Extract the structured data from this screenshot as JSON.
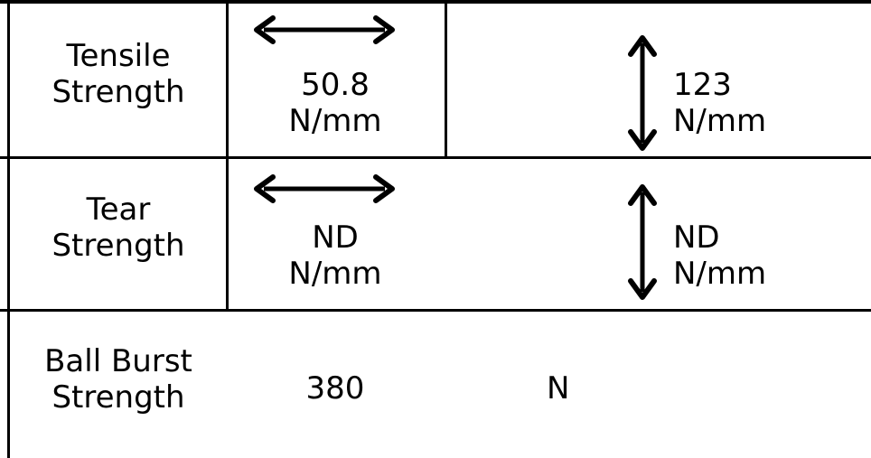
{
  "table": {
    "rows": [
      {
        "property": [
          "Tensile",
          "Strength"
        ],
        "direction_1": {
          "arrow_icon": "horizontal-double-arrow-icon",
          "value": "50.8",
          "unit": "N/mm"
        },
        "direction_2": {
          "arrow_icon": "vertical-double-arrow-icon",
          "value": "123",
          "unit": "N/mm"
        }
      },
      {
        "property": [
          "Tear",
          "Strength"
        ],
        "direction_1": {
          "arrow_icon": "horizontal-double-arrow-icon",
          "value": "ND",
          "unit": "N/mm"
        },
        "direction_2": {
          "arrow_icon": "vertical-double-arrow-icon",
          "value": "ND",
          "unit": "N/mm"
        }
      },
      {
        "property": [
          "Ball Burst",
          "Strength"
        ],
        "value": "380",
        "unit": "N"
      }
    ]
  }
}
